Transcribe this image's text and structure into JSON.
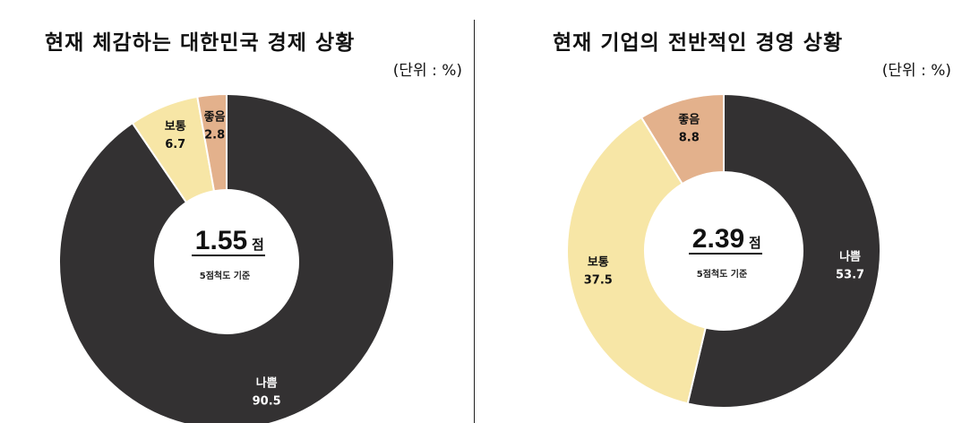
{
  "chart_data": [
    {
      "type": "pie",
      "title": "현재 체감하는 대한민국 경제 상황",
      "unit_label": "(단위 : %)",
      "center_value": "1.55",
      "center_unit": "점",
      "center_note": "5점척도 기준",
      "slices": [
        {
          "name": "나쁨",
          "value": 90.5,
          "color": "#333132"
        },
        {
          "name": "보통",
          "value": 6.7,
          "color": "#f7e6a6"
        },
        {
          "name": "좋음",
          "value": 2.8,
          "color": "#e3b18c"
        }
      ]
    },
    {
      "type": "pie",
      "title": "현재 기업의 전반적인 경영 상황",
      "unit_label": "(단위 : %)",
      "center_value": "2.39",
      "center_unit": "점",
      "center_note": "5점척도 기준",
      "slices": [
        {
          "name": "나쁨",
          "value": 53.7,
          "color": "#333132"
        },
        {
          "name": "보통",
          "value": 37.5,
          "color": "#f7e6a6"
        },
        {
          "name": "좋음",
          "value": 8.8,
          "color": "#e3b18c"
        }
      ]
    }
  ]
}
